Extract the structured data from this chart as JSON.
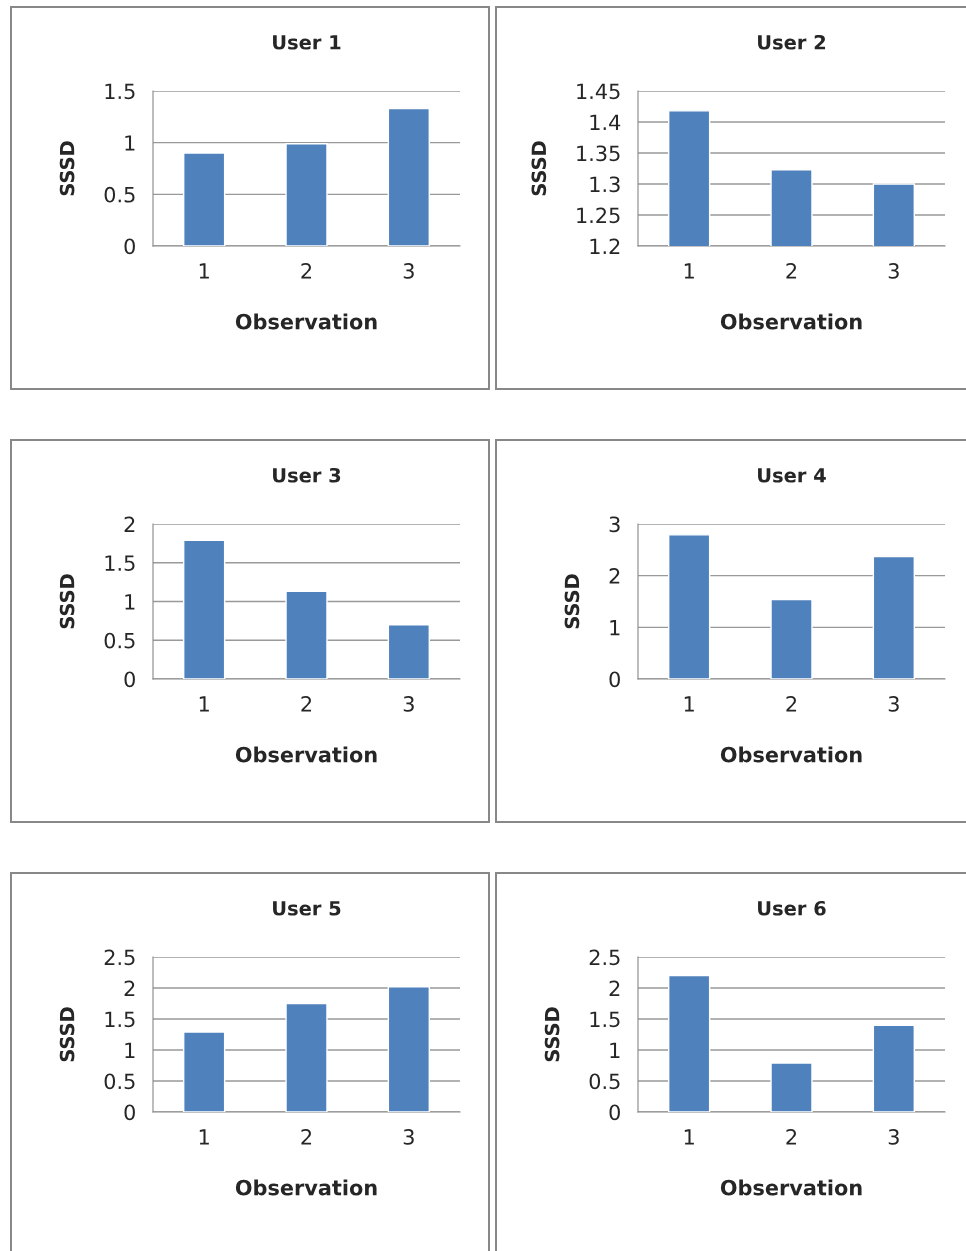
{
  "chart_data": [
    {
      "type": "bar",
      "title": "User 1",
      "xlabel": "Observation",
      "ylabel": "SSSD",
      "categories": [
        "1",
        "2",
        "3"
      ],
      "values": [
        0.9,
        0.99,
        1.33
      ],
      "color": "#4f81bd",
      "ylim": [
        0,
        1.5
      ],
      "yticks": [
        0,
        0.5,
        1,
        1.5
      ],
      "grid": "y",
      "legend": false
    },
    {
      "type": "bar",
      "title": "User 2",
      "xlabel": "Observation",
      "ylabel": "SSSD",
      "categories": [
        "1",
        "2",
        "3"
      ],
      "values": [
        1.418,
        1.323,
        1.3
      ],
      "color": "#4f81bd",
      "ylim": [
        1.2,
        1.45
      ],
      "yticks": [
        {
          "value": 1.2,
          "label": "1.2"
        },
        {
          "value": 1.25,
          "label": "1.25"
        },
        {
          "value": 1.3,
          "label": "1.3"
        },
        {
          "value": 1.35,
          "label": "1.35"
        },
        {
          "value": 1.4,
          "label": "1.4"
        },
        {
          "value": 1.45,
          "label": "1.45"
        }
      ],
      "grid": "y",
      "legend": false
    },
    {
      "type": "bar",
      "title": "User 3",
      "xlabel": "Observation",
      "ylabel": "SSSD",
      "categories": [
        "1",
        "2",
        "3"
      ],
      "values": [
        1.79,
        1.13,
        0.7
      ],
      "color": "#4f81bd",
      "ylim": [
        0,
        2
      ],
      "yticks": [
        0,
        0.5,
        1,
        1.5,
        2
      ],
      "grid": "y",
      "legend": false
    },
    {
      "type": "bar",
      "title": "User 4",
      "xlabel": "Observation",
      "ylabel": "SSSD",
      "categories": [
        "1",
        "2",
        "3"
      ],
      "values": [
        2.79,
        1.54,
        2.37
      ],
      "color": "#4f81bd",
      "ylim": [
        0,
        3
      ],
      "yticks": [
        0,
        1,
        2,
        3
      ],
      "grid": "y",
      "legend": false
    },
    {
      "type": "bar",
      "title": "User 5",
      "xlabel": "Observation",
      "ylabel": "SSSD",
      "categories": [
        "1",
        "2",
        "3"
      ],
      "values": [
        1.29,
        1.75,
        2.02
      ],
      "color": "#4f81bd",
      "ylim": [
        0,
        2.5
      ],
      "yticks": [
        0,
        0.5,
        1,
        1.5,
        2,
        2.5
      ],
      "grid": "y",
      "legend": false
    },
    {
      "type": "bar",
      "title": "User 6",
      "xlabel": "Observation",
      "ylabel": "SSSD",
      "categories": [
        "1",
        "2",
        "3"
      ],
      "values": [
        2.2,
        0.79,
        1.4
      ],
      "color": "#4f81bd",
      "ylim": [
        0,
        2.5
      ],
      "yticks": [
        0,
        0.5,
        1,
        1.5,
        2,
        2.5
      ],
      "grid": "y",
      "legend": false
    }
  ]
}
